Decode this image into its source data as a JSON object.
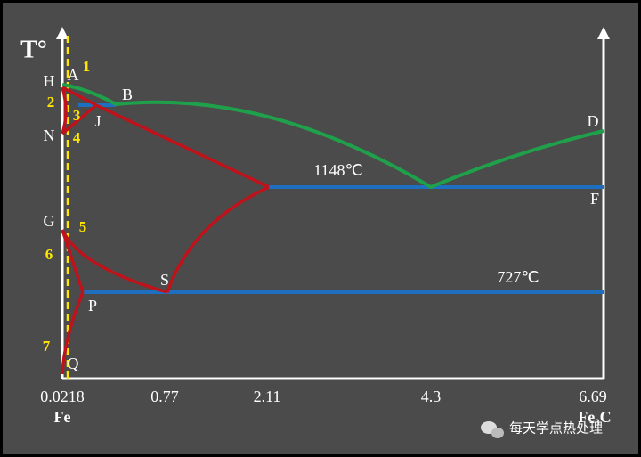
{
  "axis_title": "T°",
  "points": {
    "H": "H",
    "A": "A",
    "B": "B",
    "J": "J",
    "N": "N",
    "D": "D",
    "F": "F",
    "G": "G",
    "S": "S",
    "P": "P",
    "Q": "Q"
  },
  "regions": [
    "1",
    "2",
    "3",
    "4",
    "5",
    "6",
    "7"
  ],
  "temperatures": [
    "1148℃",
    "727℃"
  ],
  "x_labels": [
    "0.0218",
    "0.77",
    "2.11",
    "4.3",
    "6.69"
  ],
  "ends": {
    "left": "Fe",
    "right": "Fe₃C"
  },
  "watermark": "每天学点热处理"
}
